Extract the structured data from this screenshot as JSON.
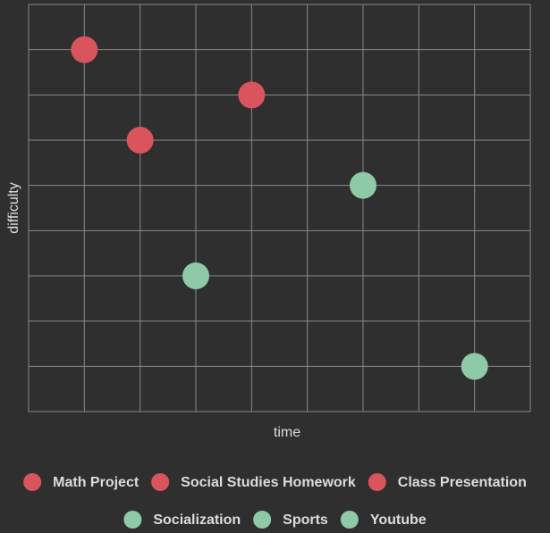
{
  "chart_data": {
    "type": "scatter",
    "xlabel": "time",
    "ylabel": "difficulty",
    "xlim": [
      0,
      9
    ],
    "ylim": [
      0,
      9
    ],
    "grid": true,
    "legend_position": "bottom",
    "points": [
      {
        "name": "Math Project",
        "x": 1,
        "y": 8,
        "color": "#d9545c"
      },
      {
        "name": "Social Studies Homework",
        "x": 2,
        "y": 6,
        "color": "#d9545c"
      },
      {
        "name": "Class Presentation",
        "x": 4,
        "y": 7,
        "color": "#d9545c"
      },
      {
        "name": "Socialization",
        "x": 3,
        "y": 3,
        "color": "#8ec9a8"
      },
      {
        "name": "Sports",
        "x": 6,
        "y": 5,
        "color": "#8ec9a8"
      },
      {
        "name": "Youtube",
        "x": 8,
        "y": 1,
        "color": "#8ec9a8"
      }
    ]
  },
  "colors": {
    "background": "#2f2f2f",
    "grid": "#8a8a8a",
    "text": "#dcdcdc",
    "work": "#d9545c",
    "leisure": "#8ec9a8"
  }
}
